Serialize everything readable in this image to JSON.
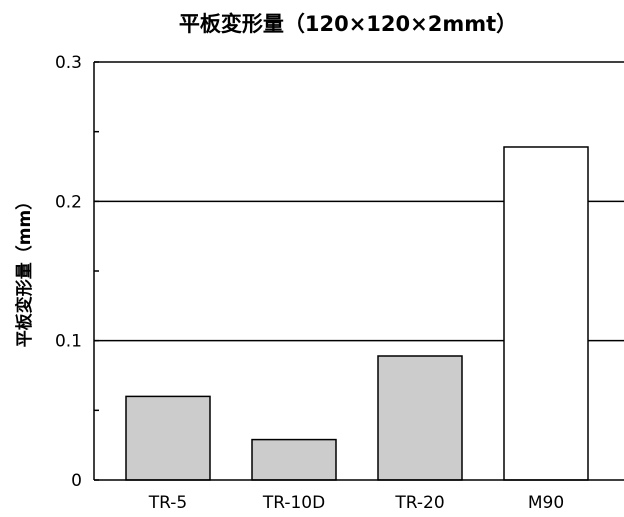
{
  "chart_data": {
    "type": "bar",
    "title": "平板変形量（120×120×2mmt）",
    "xlabel": "",
    "ylabel": "平板変形量（mm）",
    "categories": [
      "TR-5",
      "TR-10D",
      "TR-20",
      "M90"
    ],
    "values": [
      0.06,
      0.029,
      0.089,
      0.239
    ],
    "ylim": [
      0,
      0.3
    ],
    "yticks": [
      0,
      0.1,
      0.2,
      0.3
    ],
    "ytick_labels": [
      "0",
      "0.1",
      "0.2",
      "0.3"
    ],
    "minor_ticks": [
      0.05,
      0.15,
      0.25
    ],
    "grid": true,
    "bar_colors": [
      "#cccccc",
      "#cccccc",
      "#cccccc",
      "#ffffff"
    ],
    "legend": "none"
  }
}
